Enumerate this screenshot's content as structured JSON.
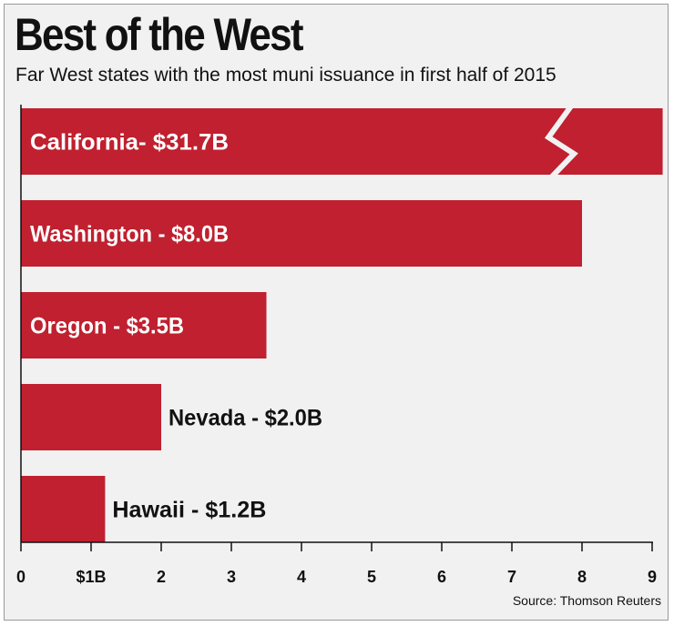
{
  "title": "Best of the West",
  "subtitle": "Far West states with the most muni issuance in first half of 2015",
  "source": "Source: Thomson Reuters",
  "colors": {
    "bar": "#c0202f",
    "background": "#f1f1f2",
    "text": "#111111",
    "label_on_bar": "#ffffff"
  },
  "chart_data": {
    "type": "bar",
    "orientation": "horizontal",
    "categories": [
      "California",
      "Washington",
      "Oregon",
      "Nevada",
      "Hawaii"
    ],
    "values": [
      31.7,
      8.0,
      3.5,
      2.0,
      1.2
    ],
    "unit": "billion dollars",
    "data_labels": [
      "California- $31.7B",
      "Washington - $8.0B",
      "Oregon - $3.5B",
      "Nevada - $2.0B",
      "Hawaii - $1.2B"
    ],
    "axis_break": {
      "category": "California",
      "note": "bar truncated with break symbol"
    },
    "xlim": [
      0,
      9
    ],
    "x_ticks": [
      0,
      1,
      2,
      3,
      4,
      5,
      6,
      7,
      8,
      9
    ],
    "x_tick_labels": [
      "0",
      "$1B",
      "2",
      "3",
      "4",
      "5",
      "6",
      "7",
      "8",
      "9"
    ],
    "xlabel": "",
    "ylabel": "",
    "grid": false,
    "legend": "none"
  }
}
